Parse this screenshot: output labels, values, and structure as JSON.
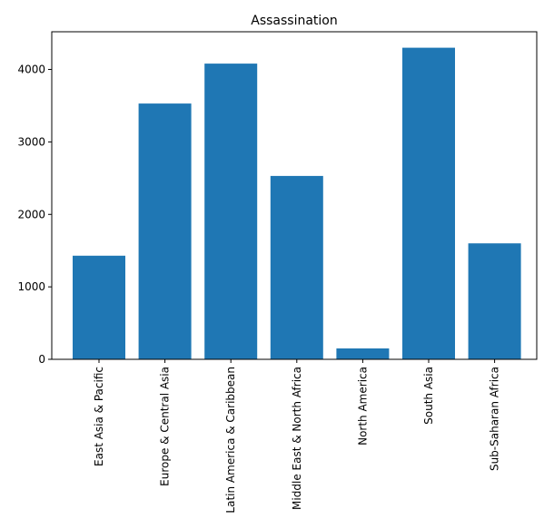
{
  "chart_data": {
    "type": "bar",
    "title": "Assassination",
    "xlabel": "",
    "ylabel": "",
    "categories": [
      "East Asia & Pacific",
      "Europe & Central Asia",
      "Latin America & Caribbean",
      "Middle East & North Africa",
      "North America",
      "South Asia",
      "Sub-Saharan Africa"
    ],
    "values": [
      1430,
      3530,
      4080,
      2530,
      150,
      4300,
      1600
    ],
    "ylim": [
      0,
      4520
    ],
    "yticks": [
      0,
      1000,
      2000,
      3000,
      4000
    ],
    "grid": false,
    "bar_color": "#1f77b4"
  }
}
